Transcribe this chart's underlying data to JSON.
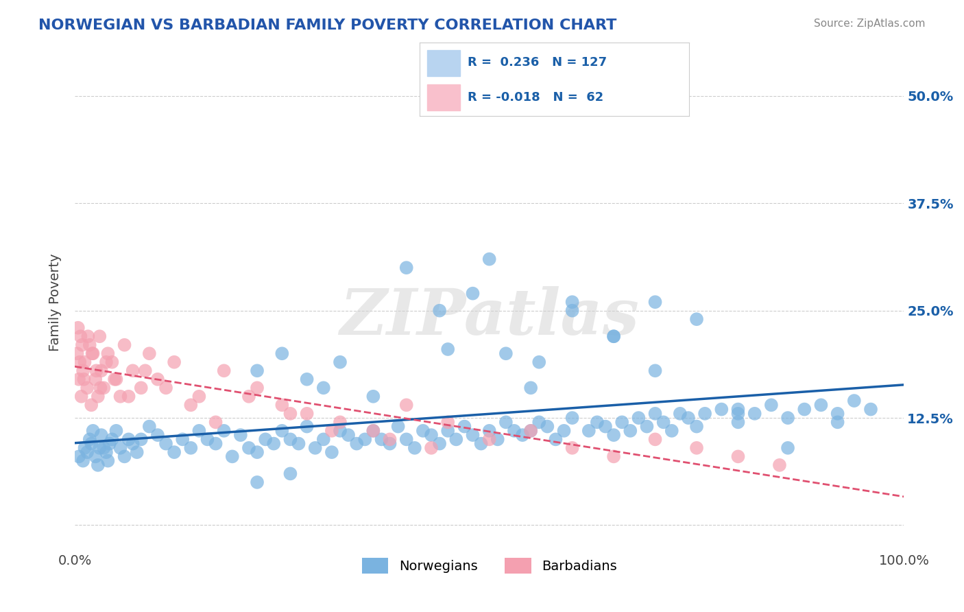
{
  "title": "NORWEGIAN VS BARBADIAN FAMILY POVERTY CORRELATION CHART",
  "source": "Source: ZipAtlas.com",
  "xlabel": "",
  "ylabel": "Family Poverty",
  "xlim": [
    0,
    100
  ],
  "ylim": [
    -3,
    55
  ],
  "yticks": [
    0,
    12.5,
    25.0,
    37.5,
    50.0
  ],
  "ytick_labels": [
    "",
    "12.5%",
    "25.0%",
    "37.5%",
    "50.0%"
  ],
  "xtick_labels": [
    "0.0%",
    "100.0%"
  ],
  "watermark": "ZIPatlas",
  "legend_r1": "R =  0.236   N = 127",
  "legend_r2": "R = -0.018   N =  62",
  "blue_color": "#7ab3e0",
  "pink_color": "#f4a0b0",
  "blue_line_color": "#1a5fa8",
  "pink_line_color": "#e05070",
  "blue_fill": "#b8d4f0",
  "pink_fill": "#f9c0cc",
  "background": "#ffffff",
  "grid_color": "#cccccc",
  "title_color": "#2255aa",
  "source_color": "#888888",
  "norwegian_x": [
    0.5,
    1.0,
    1.2,
    1.5,
    1.8,
    2.0,
    2.2,
    2.5,
    2.8,
    3.0,
    3.2,
    3.5,
    3.8,
    4.0,
    4.2,
    4.5,
    5.0,
    5.5,
    6.0,
    6.5,
    7.0,
    7.5,
    8.0,
    9.0,
    10.0,
    11.0,
    12.0,
    13.0,
    14.0,
    15.0,
    16.0,
    17.0,
    18.0,
    19.0,
    20.0,
    21.0,
    22.0,
    23.0,
    24.0,
    25.0,
    26.0,
    27.0,
    28.0,
    29.0,
    30.0,
    31.0,
    32.0,
    33.0,
    34.0,
    35.0,
    36.0,
    37.0,
    38.0,
    39.0,
    40.0,
    41.0,
    42.0,
    43.0,
    44.0,
    45.0,
    46.0,
    47.0,
    48.0,
    49.0,
    50.0,
    51.0,
    52.0,
    53.0,
    54.0,
    55.0,
    56.0,
    57.0,
    58.0,
    59.0,
    60.0,
    62.0,
    63.0,
    64.0,
    65.0,
    66.0,
    67.0,
    68.0,
    69.0,
    70.0,
    71.0,
    72.0,
    73.0,
    74.0,
    75.0,
    76.0,
    78.0,
    80.0,
    82.0,
    84.0,
    86.0,
    88.0,
    90.0,
    92.0,
    94.0,
    96.0,
    22.0,
    25.0,
    28.0,
    30.0,
    32.0,
    36.0,
    40.0,
    44.0,
    48.0,
    52.0,
    56.0,
    60.0,
    65.0,
    70.0,
    75.0,
    80.0,
    86.0,
    92.0,
    22.0,
    26.0,
    45.0,
    50.0,
    55.0,
    60.0,
    65.0,
    70.0,
    80.0
  ],
  "norwegian_y": [
    8.0,
    7.5,
    9.0,
    8.5,
    10.0,
    9.5,
    11.0,
    8.0,
    7.0,
    9.0,
    10.5,
    9.0,
    8.5,
    7.5,
    9.5,
    10.0,
    11.0,
    9.0,
    8.0,
    10.0,
    9.5,
    8.5,
    10.0,
    11.5,
    10.5,
    9.5,
    8.5,
    10.0,
    9.0,
    11.0,
    10.0,
    9.5,
    11.0,
    8.0,
    10.5,
    9.0,
    8.5,
    10.0,
    9.5,
    11.0,
    10.0,
    9.5,
    11.5,
    9.0,
    10.0,
    8.5,
    11.0,
    10.5,
    9.5,
    10.0,
    11.0,
    10.0,
    9.5,
    11.5,
    10.0,
    9.0,
    11.0,
    10.5,
    9.5,
    11.0,
    10.0,
    11.5,
    10.5,
    9.5,
    11.0,
    10.0,
    12.0,
    11.0,
    10.5,
    11.0,
    12.0,
    11.5,
    10.0,
    11.0,
    12.5,
    11.0,
    12.0,
    11.5,
    10.5,
    12.0,
    11.0,
    12.5,
    11.5,
    13.0,
    12.0,
    11.0,
    13.0,
    12.5,
    11.5,
    13.0,
    13.5,
    12.0,
    13.0,
    14.0,
    12.5,
    13.5,
    14.0,
    13.0,
    14.5,
    13.5,
    18.0,
    20.0,
    17.0,
    16.0,
    19.0,
    15.0,
    30.0,
    25.0,
    27.0,
    20.0,
    19.0,
    26.0,
    22.0,
    18.0,
    24.0,
    13.0,
    9.0,
    12.0,
    5.0,
    6.0,
    20.5,
    31.0,
    16.0,
    25.0,
    22.0,
    26.0,
    13.5
  ],
  "barbadian_x": [
    0.3,
    0.5,
    0.7,
    0.8,
    1.0,
    1.2,
    1.5,
    1.8,
    2.0,
    2.2,
    2.5,
    2.8,
    3.0,
    3.2,
    3.5,
    4.0,
    4.5,
    5.0,
    5.5,
    6.0,
    7.0,
    8.0,
    9.0,
    10.0,
    12.0,
    15.0,
    18.0,
    22.0,
    25.0,
    28.0,
    32.0,
    36.0,
    40.0,
    45.0,
    50.0,
    55.0,
    60.0,
    65.0,
    70.0,
    75.0,
    80.0,
    85.0,
    0.4,
    0.6,
    0.9,
    1.1,
    1.6,
    2.1,
    2.6,
    3.1,
    3.8,
    4.8,
    6.5,
    8.5,
    11.0,
    14.0,
    17.0,
    21.0,
    26.0,
    31.0,
    38.0,
    43.0
  ],
  "barbadian_y": [
    20.0,
    17.0,
    22.0,
    15.0,
    18.0,
    19.0,
    16.0,
    21.0,
    14.0,
    20.0,
    17.0,
    15.0,
    22.0,
    18.0,
    16.0,
    20.0,
    19.0,
    17.0,
    15.0,
    21.0,
    18.0,
    16.0,
    20.0,
    17.0,
    19.0,
    15.0,
    18.0,
    16.0,
    14.0,
    13.0,
    12.0,
    11.0,
    14.0,
    12.0,
    10.0,
    11.0,
    9.0,
    8.0,
    10.0,
    9.0,
    8.0,
    7.0,
    23.0,
    19.0,
    21.0,
    17.0,
    22.0,
    20.0,
    18.0,
    16.0,
    19.0,
    17.0,
    15.0,
    18.0,
    16.0,
    14.0,
    12.0,
    15.0,
    13.0,
    11.0,
    10.0,
    9.0
  ]
}
